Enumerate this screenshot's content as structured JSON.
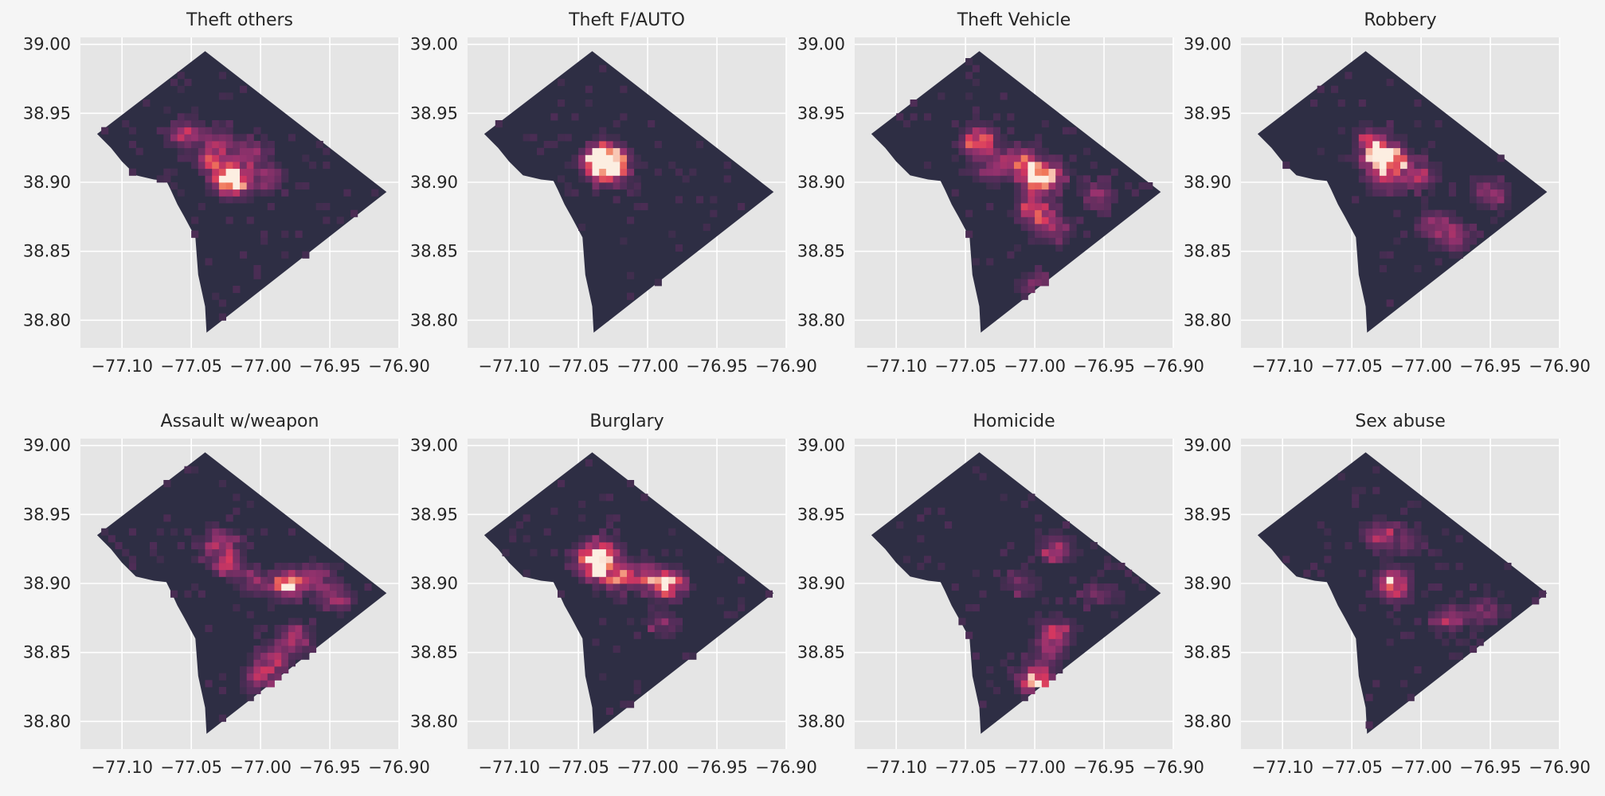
{
  "chart_data": {
    "type": "heatmap",
    "layout": "2x4 grid of maps, shared axes",
    "xlim": [
      -77.13,
      -76.9
    ],
    "ylim": [
      38.78,
      39.005
    ],
    "x_ticks": [
      {
        "value": -77.1,
        "label": "−77.10"
      },
      {
        "value": -77.05,
        "label": "−77.05"
      },
      {
        "value": -77.0,
        "label": "−77.00"
      },
      {
        "value": -76.95,
        "label": "−76.95"
      },
      {
        "value": -76.9,
        "label": "−76.90"
      }
    ],
    "y_ticks": [
      {
        "value": 39.0,
        "label": "39.00"
      },
      {
        "value": 38.95,
        "label": "38.95"
      },
      {
        "value": 38.9,
        "label": "38.90"
      },
      {
        "value": 38.85,
        "label": "38.85"
      },
      {
        "value": 38.8,
        "label": "38.80"
      }
    ],
    "grid": true,
    "colormap": "rocket",
    "colors": {
      "plot_background": "#e5e5e5",
      "figure_background": "#f5f5f5",
      "grid": "#ffffff",
      "map_base": "#2e2e44"
    },
    "boundary": [
      [
        -77.04,
        38.995
      ],
      [
        -76.909,
        38.893
      ],
      [
        -77.039,
        38.791
      ],
      [
        -77.04,
        38.81
      ],
      [
        -77.045,
        38.833
      ],
      [
        -77.047,
        38.86
      ],
      [
        -77.055,
        38.875
      ],
      [
        -77.06,
        38.884
      ],
      [
        -77.065,
        38.895
      ],
      [
        -77.068,
        38.901
      ],
      [
        -77.077,
        38.902
      ],
      [
        -77.09,
        38.905
      ],
      [
        -77.1,
        38.915
      ],
      [
        -77.108,
        38.925
      ],
      [
        -77.118,
        38.935
      ]
    ],
    "cell_size_deg": 0.005,
    "panels": [
      {
        "title": "Theft others",
        "hotspots": [
          {
            "lon": -77.02,
            "lat": 38.9,
            "intensity": 1.0
          },
          {
            "lon": -77.035,
            "lat": 38.917,
            "intensity": 0.55
          },
          {
            "lon": -77.055,
            "lat": 38.935,
            "intensity": 0.6
          },
          {
            "lon": -77.007,
            "lat": 38.92,
            "intensity": 0.55
          },
          {
            "lon": -77.03,
            "lat": 38.93,
            "intensity": 0.4
          },
          {
            "lon": -76.995,
            "lat": 38.903,
            "intensity": 0.45
          },
          {
            "lon": -77.025,
            "lat": 38.905,
            "intensity": 0.5
          }
        ]
      },
      {
        "title": "Theft F/AUTO",
        "hotspots": [
          {
            "lon": -77.032,
            "lat": 38.918,
            "intensity": 0.95
          },
          {
            "lon": -77.027,
            "lat": 38.917,
            "intensity": 0.75
          },
          {
            "lon": -77.03,
            "lat": 38.912,
            "intensity": 0.55
          },
          {
            "lon": -77.038,
            "lat": 38.912,
            "intensity": 0.45
          },
          {
            "lon": -77.022,
            "lat": 38.905,
            "intensity": 0.35
          }
        ]
      },
      {
        "title": "Theft Vehicle",
        "hotspots": [
          {
            "lon": -77.04,
            "lat": 38.93,
            "intensity": 1.0
          },
          {
            "lon": -77.0,
            "lat": 38.905,
            "intensity": 0.9
          },
          {
            "lon": -77.0,
            "lat": 38.88,
            "intensity": 1.0
          },
          {
            "lon": -77.01,
            "lat": 38.915,
            "intensity": 0.75
          },
          {
            "lon": -76.99,
            "lat": 38.905,
            "intensity": 0.7
          },
          {
            "lon": -76.985,
            "lat": 38.865,
            "intensity": 0.55
          },
          {
            "lon": -76.955,
            "lat": 38.89,
            "intensity": 0.5
          },
          {
            "lon": -77.0,
            "lat": 38.825,
            "intensity": 0.45
          },
          {
            "lon": -77.03,
            "lat": 38.91,
            "intensity": 0.55
          }
        ]
      },
      {
        "title": "Robbery",
        "hotspots": [
          {
            "lon": -77.03,
            "lat": 38.918,
            "intensity": 0.9
          },
          {
            "lon": -77.02,
            "lat": 38.915,
            "intensity": 0.8
          },
          {
            "lon": -77.035,
            "lat": 38.93,
            "intensity": 0.6
          },
          {
            "lon": -77.0,
            "lat": 38.905,
            "intensity": 0.55
          },
          {
            "lon": -76.99,
            "lat": 38.87,
            "intensity": 0.5
          },
          {
            "lon": -76.975,
            "lat": 38.86,
            "intensity": 0.5
          },
          {
            "lon": -76.95,
            "lat": 38.893,
            "intensity": 0.5
          },
          {
            "lon": -77.025,
            "lat": 38.9,
            "intensity": 0.45
          }
        ]
      },
      {
        "title": "Assault w/weapon",
        "hotspots": [
          {
            "lon": -76.98,
            "lat": 38.9,
            "intensity": 1.0
          },
          {
            "lon": -77.03,
            "lat": 38.93,
            "intensity": 0.6
          },
          {
            "lon": -77.025,
            "lat": 38.915,
            "intensity": 0.55
          },
          {
            "lon": -76.975,
            "lat": 38.86,
            "intensity": 0.7
          },
          {
            "lon": -76.99,
            "lat": 38.845,
            "intensity": 0.65
          },
          {
            "lon": -77.0,
            "lat": 38.83,
            "intensity": 0.6
          },
          {
            "lon": -76.945,
            "lat": 38.89,
            "intensity": 0.55
          },
          {
            "lon": -76.96,
            "lat": 38.905,
            "intensity": 0.45
          },
          {
            "lon": -77.005,
            "lat": 38.9,
            "intensity": 0.4
          }
        ]
      },
      {
        "title": "Burglary",
        "hotspots": [
          {
            "lon": -76.985,
            "lat": 38.9,
            "intensity": 1.0
          },
          {
            "lon": -77.04,
            "lat": 38.918,
            "intensity": 0.85
          },
          {
            "lon": -77.035,
            "lat": 38.91,
            "intensity": 0.7
          },
          {
            "lon": -77.02,
            "lat": 38.905,
            "intensity": 0.6
          },
          {
            "lon": -77.0,
            "lat": 38.905,
            "intensity": 0.55
          },
          {
            "lon": -77.03,
            "lat": 38.925,
            "intensity": 0.45
          },
          {
            "lon": -76.99,
            "lat": 38.87,
            "intensity": 0.35
          }
        ]
      },
      {
        "title": "Homicide",
        "hotspots": [
          {
            "lon": -77.0,
            "lat": 38.83,
            "intensity": 1.0
          },
          {
            "lon": -76.985,
            "lat": 38.925,
            "intensity": 0.55
          },
          {
            "lon": -76.985,
            "lat": 38.865,
            "intensity": 0.55
          },
          {
            "lon": -76.99,
            "lat": 38.85,
            "intensity": 0.45
          },
          {
            "lon": -77.01,
            "lat": 38.9,
            "intensity": 0.35
          },
          {
            "lon": -76.955,
            "lat": 38.893,
            "intensity": 0.35
          }
        ]
      },
      {
        "title": "Sex abuse",
        "hotspots": [
          {
            "lon": -77.02,
            "lat": 38.9,
            "intensity": 1.0
          },
          {
            "lon": -77.03,
            "lat": 38.935,
            "intensity": 0.55
          },
          {
            "lon": -76.98,
            "lat": 38.875,
            "intensity": 0.5
          },
          {
            "lon": -76.955,
            "lat": 38.88,
            "intensity": 0.45
          },
          {
            "lon": -77.01,
            "lat": 38.93,
            "intensity": 0.35
          }
        ]
      }
    ]
  }
}
